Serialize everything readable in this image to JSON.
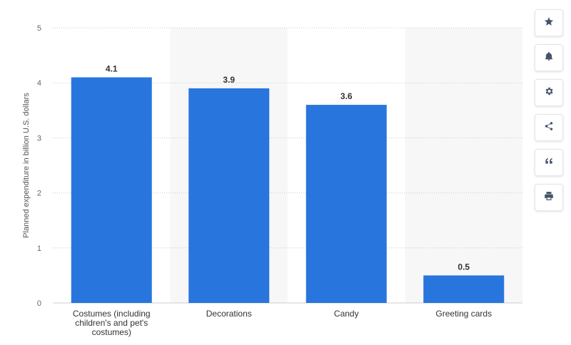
{
  "chart_data": {
    "type": "bar",
    "title": "",
    "xlabel": "",
    "ylabel": "Planned expenditure in billion U.S. dollars",
    "ylim": [
      0,
      5
    ],
    "yticks": [
      0,
      1,
      2,
      3,
      4,
      5
    ],
    "grid": true,
    "categories": [
      [
        "Costumes (including",
        "children's and pet's",
        "costumes)"
      ],
      [
        "Decorations"
      ],
      [
        "Candy"
      ],
      [
        "Greeting cards"
      ]
    ],
    "values": [
      4.1,
      3.9,
      3.6,
      0.5
    ],
    "data_labels": [
      "4.1",
      "3.9",
      "3.6",
      "0.5"
    ],
    "bar_color": "#2876dd",
    "band_color": "#f7f7f7"
  },
  "toolbar": {
    "buttons": [
      {
        "icon": "star-icon",
        "name": "favorite-button"
      },
      {
        "icon": "bell-icon",
        "name": "notification-button"
      },
      {
        "icon": "gear-icon",
        "name": "settings-button"
      },
      {
        "icon": "share-icon",
        "name": "share-button"
      },
      {
        "icon": "quote-icon",
        "name": "cite-button"
      },
      {
        "icon": "print-icon",
        "name": "print-button"
      }
    ]
  }
}
